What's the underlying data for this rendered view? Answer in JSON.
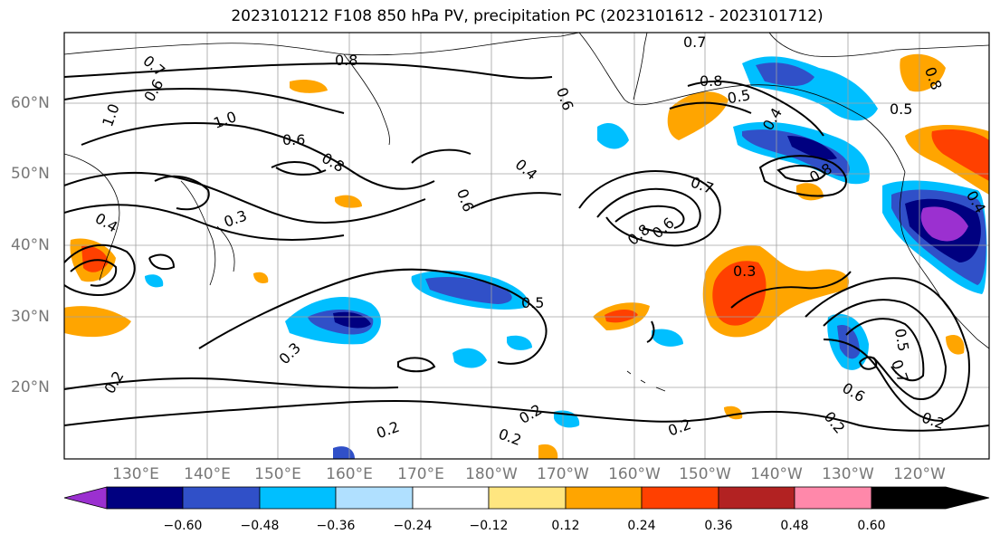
{
  "title": "2023101212 F108 850 hPa PV, precipitation PC (2023101612 - 2023101712)",
  "lat_labels": [
    "60°N",
    "50°N",
    "40°N",
    "30°N",
    "20°N"
  ],
  "lon_labels": [
    "130°E",
    "140°E",
    "150°E",
    "160°E",
    "170°E",
    "180°W",
    "170°W",
    "160°W",
    "150°W",
    "140°W",
    "130°W",
    "120°W"
  ],
  "colorbar": {
    "ticks": [
      "−0.60",
      "−0.48",
      "−0.36",
      "−0.24",
      "−0.12",
      "0.12",
      "0.24",
      "0.36",
      "0.48",
      "0.60"
    ],
    "colors": [
      "#9b30d0",
      "#000080",
      "#3050c8",
      "#00bfff",
      "#b0e0ff",
      "#ffffff",
      "#ffe680",
      "#ffa500",
      "#ff4000",
      "#b22222",
      "#ff88aa"
    ]
  },
  "contour_labels": [
    "0.8",
    "0.7",
    "0.7",
    "0.6",
    "1.0",
    "0.6",
    "0.8",
    "0.6",
    "0.4",
    "0.6",
    "0.7",
    "0.8",
    "0.6",
    "0.8",
    "0.5",
    "0.5",
    "0.4",
    "0.3",
    "0.5",
    "0.3",
    "0.2",
    "0.2",
    "0.2",
    "0.2",
    "0.2",
    "0.2",
    "0.6",
    "0.7",
    "0.5",
    "0.2",
    "0.4",
    "0.8",
    "0.3",
    "0.8",
    "0.4",
    "1.0"
  ]
}
